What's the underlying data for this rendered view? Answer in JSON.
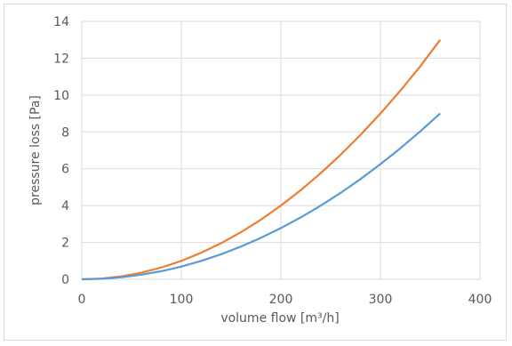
{
  "chart_data": {
    "type": "line",
    "title": "",
    "xlabel": "volume flow [m³/h]",
    "ylabel": "pressure loss [Pa]",
    "xlim": [
      0,
      400
    ],
    "ylim": [
      0,
      14
    ],
    "x_ticks": [
      "0",
      "100",
      "200",
      "300",
      "400"
    ],
    "y_ticks": [
      "0",
      "2",
      "4",
      "6",
      "8",
      "10",
      "12",
      "14"
    ],
    "grid": true,
    "legend": "none",
    "series": [
      {
        "color": "#ED7D31",
        "x": [
          0,
          20,
          40,
          60,
          80,
          100,
          120,
          140,
          160,
          180,
          200,
          220,
          240,
          260,
          280,
          300,
          320,
          340,
          360
        ],
        "y": [
          0,
          0.04,
          0.16,
          0.36,
          0.64,
          1.0,
          1.44,
          1.96,
          2.56,
          3.24,
          4.0,
          4.84,
          5.76,
          6.76,
          7.84,
          9.0,
          10.24,
          11.56,
          13.0
        ]
      },
      {
        "color": "#5B9BD5",
        "x": [
          0,
          20,
          40,
          60,
          80,
          100,
          120,
          140,
          160,
          180,
          200,
          220,
          240,
          260,
          280,
          300,
          320,
          340,
          360
        ],
        "y": [
          0,
          0.03,
          0.11,
          0.25,
          0.44,
          0.69,
          1.0,
          1.36,
          1.78,
          2.25,
          2.78,
          3.36,
          4.0,
          4.69,
          5.44,
          6.25,
          7.11,
          8.03,
          9.0
        ]
      }
    ]
  }
}
